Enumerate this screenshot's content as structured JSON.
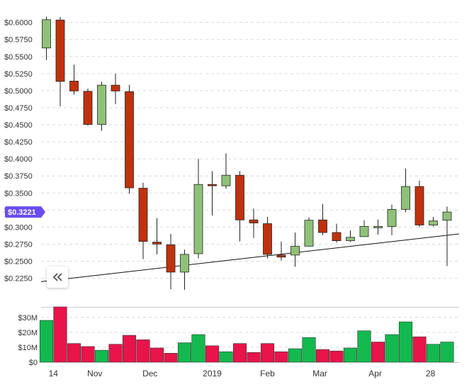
{
  "chart_data": [
    {
      "type": "candlestick",
      "ylim": [
        0.21,
        0.61
      ],
      "y_ticks": [
        "$0.6000",
        "$0.5750",
        "$0.5500",
        "$0.5250",
        "$0.5000",
        "$0.4750",
        "$0.4500",
        "$0.4250",
        "$0.4000",
        "$0.3750",
        "$0.3500",
        "$0.3250",
        "$0.3000",
        "$0.2750",
        "$0.2500",
        "$0.2250"
      ],
      "y_tick_values": [
        0.6,
        0.575,
        0.55,
        0.525,
        0.5,
        0.475,
        0.45,
        0.425,
        0.4,
        0.375,
        0.35,
        0.325,
        0.3,
        0.275,
        0.25,
        0.225
      ],
      "grid": true,
      "current_price_label": "$0.3221",
      "current_price": 0.3221,
      "colors": {
        "up": "#8fc278",
        "down": "#c0320d",
        "wick": "#222222",
        "price_tag": "#6a4cf0",
        "trendline": "#111111"
      },
      "candles": [
        {
          "o": 0.5625,
          "h": 0.6085,
          "l": 0.545,
          "c": 0.604
        },
        {
          "o": 0.6035,
          "h": 0.608,
          "l": 0.477,
          "c": 0.5135
        },
        {
          "o": 0.514,
          "h": 0.538,
          "l": 0.494,
          "c": 0.4995
        },
        {
          "o": 0.499,
          "h": 0.503,
          "l": 0.449,
          "c": 0.4505
        },
        {
          "o": 0.4505,
          "h": 0.513,
          "l": 0.441,
          "c": 0.508
        },
        {
          "o": 0.508,
          "h": 0.525,
          "l": 0.48,
          "c": 0.4995
        },
        {
          "o": 0.4985,
          "h": 0.5085,
          "l": 0.349,
          "c": 0.3575
        },
        {
          "o": 0.357,
          "h": 0.365,
          "l": 0.253,
          "c": 0.279
        },
        {
          "o": 0.278,
          "h": 0.313,
          "l": 0.26,
          "c": 0.275
        },
        {
          "o": 0.274,
          "h": 0.29,
          "l": 0.209,
          "c": 0.234
        },
        {
          "o": 0.234,
          "h": 0.267,
          "l": 0.208,
          "c": 0.26
        },
        {
          "o": 0.261,
          "h": 0.4,
          "l": 0.254,
          "c": 0.3625
        },
        {
          "o": 0.3625,
          "h": 0.382,
          "l": 0.317,
          "c": 0.3605
        },
        {
          "o": 0.3605,
          "h": 0.408,
          "l": 0.356,
          "c": 0.376
        },
        {
          "o": 0.376,
          "h": 0.382,
          "l": 0.279,
          "c": 0.3105
        },
        {
          "o": 0.3105,
          "h": 0.327,
          "l": 0.284,
          "c": 0.306
        },
        {
          "o": 0.305,
          "h": 0.315,
          "l": 0.254,
          "c": 0.26
        },
        {
          "o": 0.259,
          "h": 0.279,
          "l": 0.251,
          "c": 0.256
        },
        {
          "o": 0.259,
          "h": 0.292,
          "l": 0.242,
          "c": 0.272
        },
        {
          "o": 0.272,
          "h": 0.314,
          "l": 0.272,
          "c": 0.31
        },
        {
          "o": 0.3105,
          "h": 0.334,
          "l": 0.288,
          "c": 0.292
        },
        {
          "o": 0.292,
          "h": 0.305,
          "l": 0.277,
          "c": 0.28
        },
        {
          "o": 0.28,
          "h": 0.295,
          "l": 0.278,
          "c": 0.285
        },
        {
          "o": 0.286,
          "h": 0.31,
          "l": 0.286,
          "c": 0.301
        },
        {
          "o": 0.299,
          "h": 0.311,
          "l": 0.289,
          "c": 0.301
        },
        {
          "o": 0.301,
          "h": 0.333,
          "l": 0.288,
          "c": 0.326
        },
        {
          "o": 0.326,
          "h": 0.386,
          "l": 0.322,
          "c": 0.3595
        },
        {
          "o": 0.3595,
          "h": 0.368,
          "l": 0.3,
          "c": 0.303
        },
        {
          "o": 0.303,
          "h": 0.315,
          "l": 0.301,
          "c": 0.309
        },
        {
          "o": 0.31,
          "h": 0.33,
          "l": 0.243,
          "c": 0.3221
        }
      ],
      "trendline": {
        "start": 0.22,
        "end": 0.29
      }
    },
    {
      "type": "bar",
      "y_ticks": [
        "$30M",
        "$20M",
        "$10M",
        "$0"
      ],
      "y_tick_values": [
        30,
        20,
        10,
        0
      ],
      "ylim": [
        0,
        37
      ],
      "colors": {
        "up": "#13b94e",
        "down": "#e8144a"
      },
      "values": [
        28,
        37,
        12.5,
        10.5,
        8,
        12,
        18,
        15,
        9.5,
        6,
        13,
        18.5,
        11,
        7,
        12.5,
        6.5,
        12.5,
        7,
        9,
        16.5,
        8.5,
        7.5,
        9.5,
        21,
        13.5,
        18.5,
        27,
        17,
        12,
        13.5
      ],
      "directions": [
        "up",
        "down",
        "down",
        "down",
        "up",
        "down",
        "down",
        "down",
        "down",
        "down",
        "up",
        "up",
        "down",
        "up",
        "down",
        "down",
        "down",
        "down",
        "up",
        "up",
        "down",
        "down",
        "up",
        "up",
        "down",
        "up",
        "up",
        "down",
        "up",
        "up"
      ]
    }
  ],
  "x_axis": {
    "ticks": [
      {
        "label": "14",
        "index": 0.5
      },
      {
        "label": "Nov",
        "index": 3.5
      },
      {
        "label": "Dec",
        "index": 7.5
      },
      {
        "label": "2019",
        "index": 12
      },
      {
        "label": "Feb",
        "index": 16
      },
      {
        "label": "Mar",
        "index": 19.8
      },
      {
        "label": "Apr",
        "index": 23.8
      },
      {
        "label": "28",
        "index": 27.8
      }
    ]
  },
  "scroll_button_icon": "double-chevron-left-icon"
}
